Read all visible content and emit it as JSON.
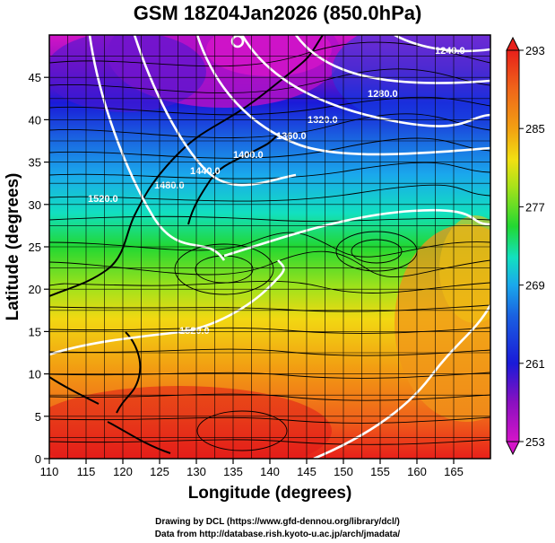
{
  "title": "GSM 18Z04Jan2026 (850.0hPa)",
  "x_axis": {
    "label": "Longitude (degrees)",
    "ticks": [
      110,
      115,
      120,
      125,
      130,
      135,
      140,
      145,
      150,
      155,
      160,
      165
    ],
    "range": [
      110,
      170
    ]
  },
  "y_axis": {
    "label": "Latitude  (degrees)",
    "ticks": [
      0,
      5,
      10,
      15,
      20,
      25,
      30,
      35,
      40,
      45
    ],
    "range": [
      0,
      50
    ]
  },
  "colorbar": {
    "ticks": [
      253,
      261,
      269,
      277,
      285,
      293
    ],
    "colors": [
      "#d414c8",
      "#8a10c0",
      "#1a1ad8",
      "#1aa8ec",
      "#12e0c0",
      "#22d832",
      "#a6e21a",
      "#f2e012",
      "#f2a012",
      "#f0661a",
      "#e8201a"
    ]
  },
  "contour_labels": [
    "1240.0",
    "1280.0",
    "1320.0",
    "1360.0",
    "1400.0",
    "1440.0",
    "1480.0",
    "1520.0",
    "1520.0"
  ],
  "credits": {
    "line1": "Drawing by DCL (https://www.gfd-dennou.org/library/dcl/)",
    "line2": "Data from http://database.rish.kyoto-u.ac.jp/arch/jmadata/"
  }
}
